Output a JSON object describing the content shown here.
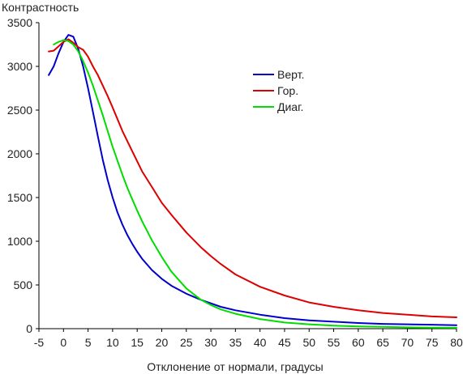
{
  "chart_data": {
    "type": "line",
    "title": "",
    "ylabel": "Контрастность",
    "xlabel": "Отклонение от нормали, градусы",
    "xlim": [
      -5,
      80
    ],
    "ylim": [
      0,
      3500
    ],
    "x_ticks": [
      -5,
      0,
      5,
      10,
      15,
      20,
      25,
      30,
      35,
      40,
      45,
      50,
      55,
      60,
      65,
      70,
      75,
      80
    ],
    "y_ticks": [
      0,
      500,
      1000,
      1500,
      2000,
      2500,
      3000,
      3500
    ],
    "grid": false,
    "legend_position": "top-right",
    "series": [
      {
        "name": "Верт.",
        "color": "#0000cc",
        "x": [
          -3,
          -2,
          -1,
          0,
          1,
          2,
          3,
          4,
          5,
          6,
          7,
          8,
          9,
          10,
          11,
          12,
          13,
          14,
          15,
          16,
          18,
          20,
          22,
          25,
          28,
          30,
          32,
          35,
          40,
          45,
          50,
          55,
          60,
          65,
          70,
          75,
          80
        ],
        "values": [
          2900,
          3000,
          3150,
          3280,
          3360,
          3340,
          3200,
          3000,
          2750,
          2480,
          2200,
          1930,
          1700,
          1500,
          1330,
          1190,
          1070,
          970,
          880,
          800,
          670,
          570,
          490,
          400,
          330,
          290,
          250,
          210,
          160,
          120,
          95,
          80,
          65,
          55,
          50,
          45,
          40
        ]
      },
      {
        "name": "Гор.",
        "color": "#dd0000",
        "x": [
          -3,
          -2,
          -1,
          0,
          1,
          2,
          3,
          4,
          5,
          6,
          7,
          8,
          9,
          10,
          12,
          14,
          16,
          18,
          20,
          22,
          25,
          28,
          30,
          32,
          35,
          40,
          45,
          50,
          55,
          60,
          65,
          70,
          75,
          80
        ],
        "values": [
          3170,
          3180,
          3230,
          3280,
          3310,
          3270,
          3220,
          3190,
          3110,
          3000,
          2900,
          2780,
          2660,
          2530,
          2260,
          2030,
          1800,
          1620,
          1440,
          1300,
          1100,
          930,
          830,
          740,
          620,
          480,
          380,
          300,
          250,
          210,
          180,
          160,
          140,
          130
        ]
      },
      {
        "name": "Диаг.",
        "color": "#00dd00",
        "x": [
          -2,
          -1,
          0,
          1,
          2,
          3,
          4,
          5,
          6,
          7,
          8,
          9,
          10,
          11,
          12,
          13,
          14,
          15,
          16,
          18,
          20,
          22,
          25,
          28,
          30,
          32,
          35,
          40,
          45,
          50,
          55,
          60,
          65,
          70,
          75,
          80
        ],
        "values": [
          3250,
          3280,
          3300,
          3290,
          3250,
          3170,
          3060,
          2930,
          2780,
          2610,
          2440,
          2260,
          2080,
          1920,
          1760,
          1610,
          1480,
          1350,
          1230,
          1010,
          820,
          650,
          460,
          330,
          270,
          220,
          170,
          110,
          70,
          50,
          35,
          25,
          20,
          15,
          12,
          10
        ]
      }
    ]
  }
}
